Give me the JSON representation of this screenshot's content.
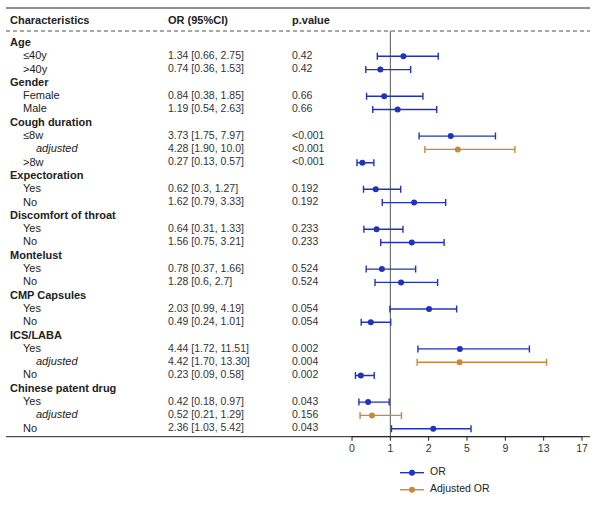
{
  "chart_data": {
    "type": "forest",
    "col_headers": [
      "Characteristics",
      "OR (95%CI)",
      "p.value"
    ],
    "categories": [
      "Age",
      "≤40y",
      ">40y",
      "Gender",
      "Female",
      "Male",
      "Cough duration",
      "≤8w",
      "adjusted",
      ">8w",
      "Expectoration",
      "Yes",
      "No",
      "Discomfort of throat",
      "Yes",
      "No",
      "Montelust",
      "Yes",
      "No",
      "CMP Capsules",
      "Yes",
      "No",
      "ICS/LABA",
      "Yes",
      "adjusted",
      "No",
      "Chinese patent drug",
      "Yes",
      "adjusted",
      "No"
    ],
    "series": [
      {
        "name": "OR",
        "color": "#2233BB",
        "marker": "circle",
        "values": [
          null,
          1.34,
          0.74,
          null,
          0.84,
          1.19,
          null,
          3.73,
          null,
          0.27,
          null,
          0.62,
          1.62,
          null,
          0.64,
          1.56,
          null,
          0.78,
          1.28,
          null,
          2.03,
          0.49,
          null,
          4.44,
          null,
          0.23,
          null,
          0.42,
          null,
          2.36
        ],
        "lo": [
          null,
          0.66,
          0.36,
          null,
          0.38,
          0.54,
          null,
          1.75,
          null,
          0.13,
          null,
          0.3,
          0.79,
          null,
          0.31,
          0.75,
          null,
          0.37,
          0.6,
          null,
          0.99,
          0.24,
          null,
          1.72,
          null,
          0.09,
          null,
          0.18,
          null,
          1.03
        ],
        "hi": [
          null,
          2.75,
          1.53,
          null,
          1.85,
          2.63,
          null,
          7.97,
          null,
          0.57,
          null,
          1.27,
          3.33,
          null,
          1.33,
          3.21,
          null,
          1.66,
          2.7,
          null,
          4.19,
          1.01,
          null,
          11.51,
          null,
          0.58,
          null,
          0.97,
          null,
          5.42
        ],
        "value_labels": [
          null,
          "1.34 [0.66, 2.75]",
          "0.74 [0.36, 1.53]",
          null,
          "0.84 [0.38, 1.85]",
          "1.19 [0.54, 2.63]",
          null,
          "3.73 [1.75, 7.97]",
          null,
          "0.27 [0.13, 0.57]",
          null,
          "0.62 [0.3, 1.27]",
          "1.62 [0.79, 3.33]",
          null,
          "0.64 [0.31, 1.33]",
          "1.56 [0.75, 3.21]",
          null,
          "0.78 [0.37, 1.66]",
          "1.28 [0.6, 2.7]",
          null,
          "2.03 [0.99, 4.19]",
          "0.49 [0.24, 1.01]",
          null,
          "4.44 [1.72, 11.51]",
          null,
          "0.23 [0.09, 0.58]",
          null,
          "0.42 [0.18, 0.97]",
          null,
          "2.36 [1.03, 5.42]"
        ],
        "p_values": [
          null,
          "0.42",
          "0.42",
          null,
          "0.66",
          "0.66",
          null,
          "<0.001",
          null,
          "<0.001",
          null,
          "0.192",
          "0.192",
          null,
          "0.233",
          "0.233",
          null,
          "0.524",
          "0.524",
          null,
          "0.054",
          "0.054",
          null,
          "0.002",
          null,
          "0.002",
          null,
          "0.043",
          null,
          "0.043"
        ]
      },
      {
        "name": "Adjusted OR",
        "color": "#CC8833",
        "marker": "circle",
        "values": [
          null,
          null,
          null,
          null,
          null,
          null,
          null,
          null,
          4.28,
          null,
          null,
          null,
          null,
          null,
          null,
          null,
          null,
          null,
          null,
          null,
          null,
          null,
          null,
          null,
          4.42,
          null,
          null,
          null,
          0.52,
          null
        ],
        "lo": [
          null,
          null,
          null,
          null,
          null,
          null,
          null,
          null,
          1.9,
          null,
          null,
          null,
          null,
          null,
          null,
          null,
          null,
          null,
          null,
          null,
          null,
          null,
          null,
          null,
          1.7,
          null,
          null,
          null,
          0.21,
          null
        ],
        "hi": [
          null,
          null,
          null,
          null,
          null,
          null,
          null,
          null,
          10.0,
          null,
          null,
          null,
          null,
          null,
          null,
          null,
          null,
          null,
          null,
          null,
          null,
          null,
          null,
          null,
          13.3,
          null,
          null,
          null,
          1.29,
          null
        ],
        "value_labels": [
          null,
          null,
          null,
          null,
          null,
          null,
          null,
          null,
          "4.28 [1.90, 10.0]",
          null,
          null,
          null,
          null,
          null,
          null,
          null,
          null,
          null,
          null,
          null,
          null,
          null,
          null,
          null,
          "4.42 [1.70, 13.30]",
          null,
          null,
          null,
          "0.52 [0.21, 1.29]",
          null
        ],
        "p_values": [
          null,
          null,
          null,
          null,
          null,
          null,
          null,
          null,
          "<0.001",
          null,
          null,
          null,
          null,
          null,
          null,
          null,
          null,
          null,
          null,
          null,
          null,
          null,
          null,
          null,
          "0.004",
          null,
          null,
          null,
          "0.156",
          null
        ]
      }
    ],
    "xlim": [
      0,
      17
    ],
    "xticks": [
      0,
      1,
      2,
      5,
      9,
      13,
      17
    ],
    "vline": 1,
    "data_labels": true,
    "legend": "bottom"
  }
}
